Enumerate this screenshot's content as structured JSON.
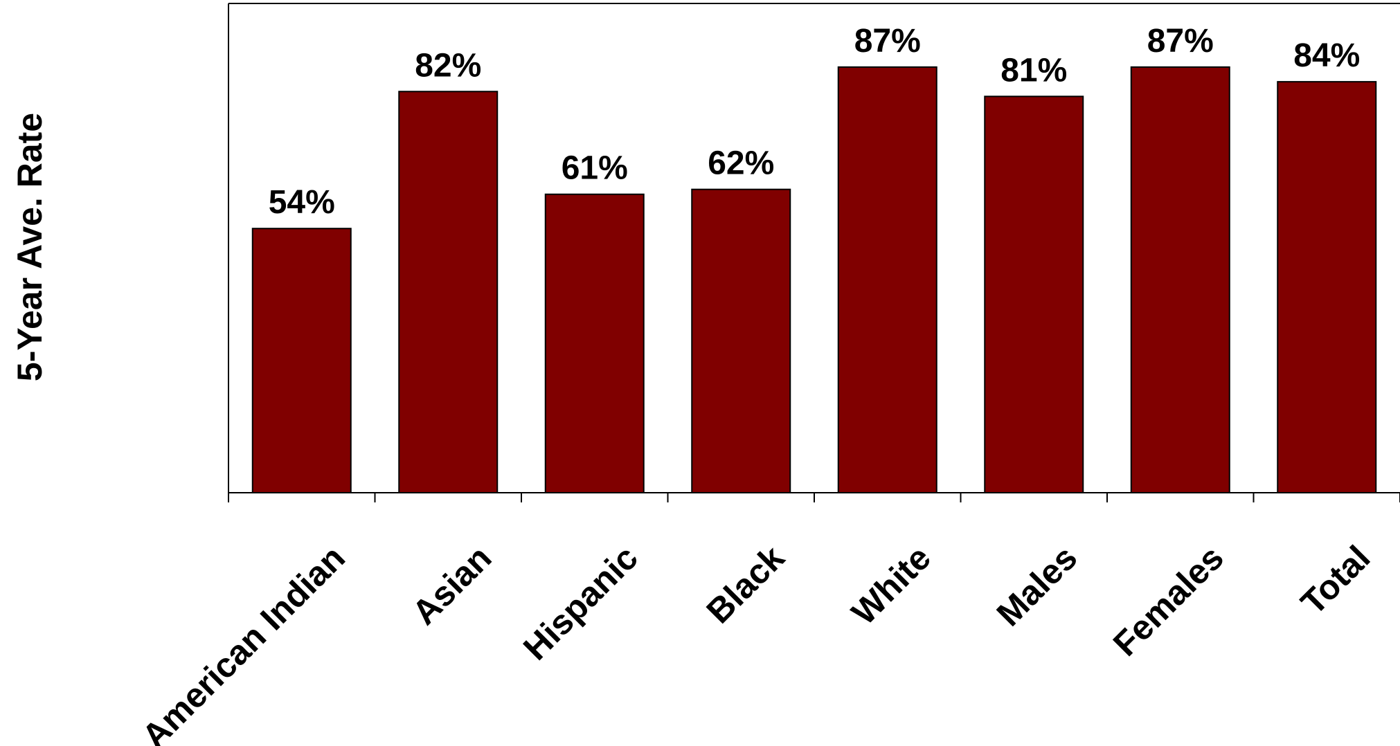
{
  "chart_data": {
    "type": "bar",
    "title": "",
    "xlabel": "",
    "ylabel": "5-Year Ave. Rate",
    "ylim": [
      0,
      100
    ],
    "grid": false,
    "legend": "none",
    "categories": [
      "American Indian",
      "Asian",
      "Hispanic",
      "Black",
      "White",
      "Males",
      "Females",
      "Total"
    ],
    "values": [
      54,
      82,
      61,
      62,
      87,
      81,
      87,
      84
    ],
    "value_labels": [
      "54%",
      "82%",
      "61%",
      "62%",
      "87%",
      "81%",
      "87%",
      "84%"
    ],
    "bar_color": "#800000"
  }
}
